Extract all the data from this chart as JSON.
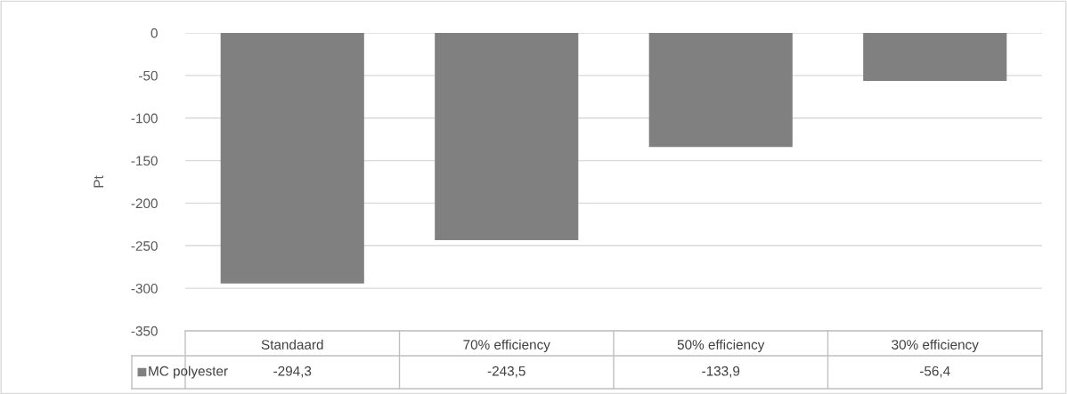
{
  "chart_data": {
    "type": "bar",
    "ylabel": "Pt",
    "categories": [
      "Standaard",
      "70% efficiency",
      "50% efficiency",
      "30% efficiency"
    ],
    "series": [
      {
        "name": "MC polyester",
        "color": "#808080",
        "values": [
          -294.3,
          -243.5,
          -133.9,
          -56.4
        ],
        "value_labels": [
          "-294,3",
          "-243,5",
          "-133,9",
          "-56,4"
        ]
      }
    ],
    "ylim": [
      -350,
      0
    ],
    "yticks": [
      0,
      -50,
      -100,
      -150,
      -200,
      -250,
      -300,
      -350
    ],
    "grid": "y",
    "legend": "bottom"
  }
}
